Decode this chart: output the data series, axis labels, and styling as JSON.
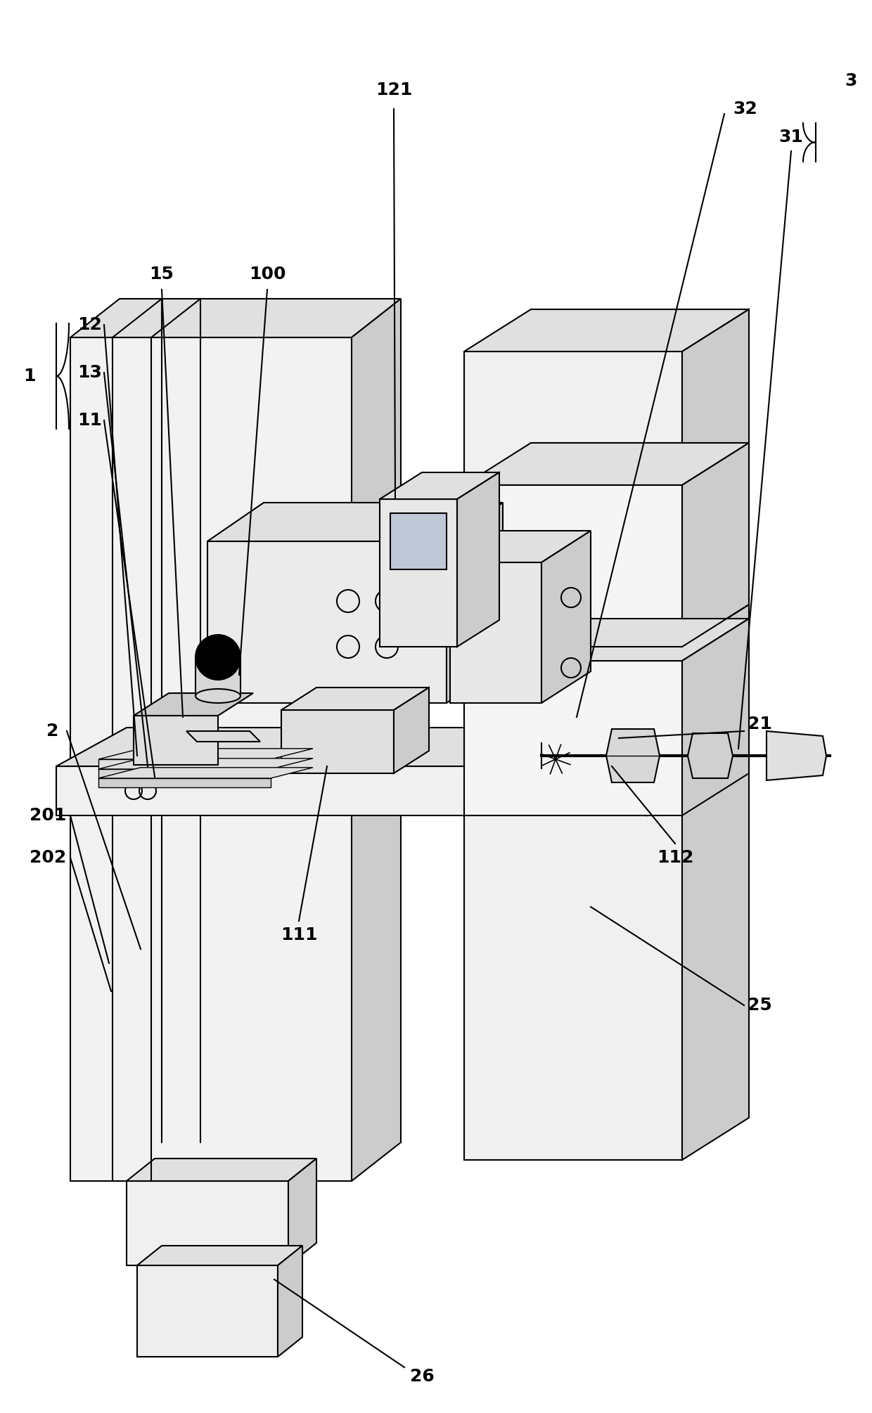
{
  "figure_width": 12.4,
  "figure_height": 20.1,
  "bg_color": "#ffffff",
  "line_color": "#000000",
  "line_width": 1.5,
  "label_fontsize": 18,
  "light_gray": "#f0f0f0",
  "mid_gray": "#e0e0e0",
  "dark_gray": "#cccccc",
  "darker_gray": "#b8b8b8"
}
